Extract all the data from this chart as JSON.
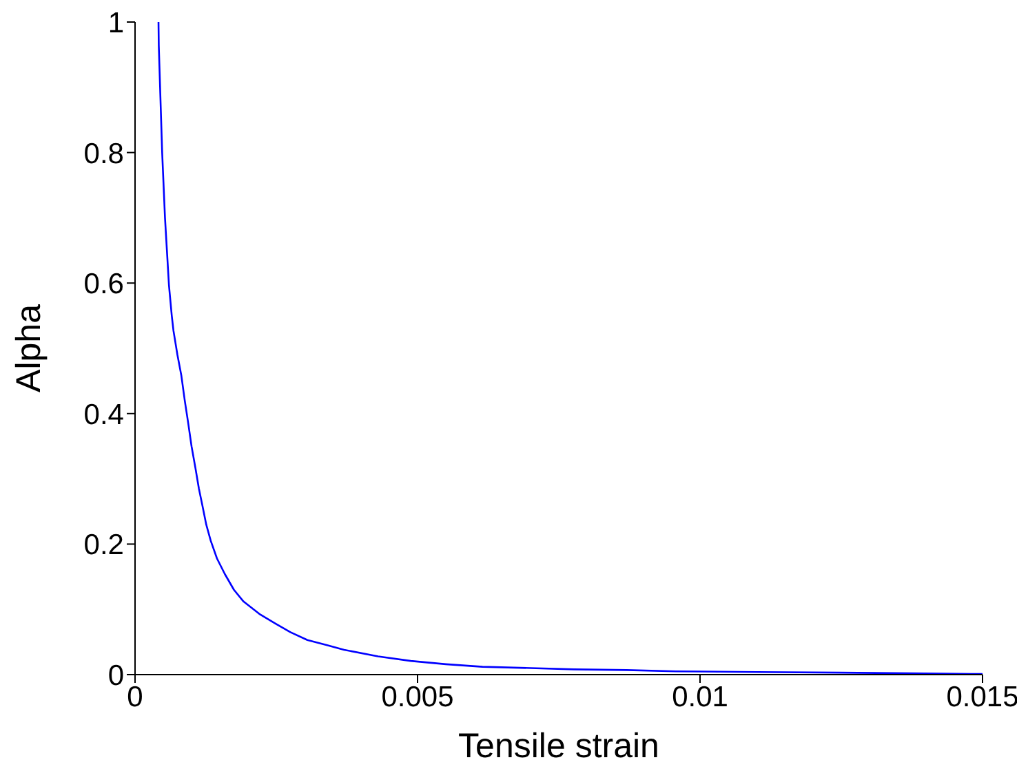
{
  "chart_data": {
    "type": "line",
    "xlabel": "Tensile strain",
    "ylabel": "Alpha",
    "xlim": [
      0,
      0.015
    ],
    "ylim": [
      0,
      1
    ],
    "xticks": [
      0,
      0.005,
      0.01,
      0.015
    ],
    "yticks": [
      0,
      0.2,
      0.4,
      0.6,
      0.8,
      1
    ],
    "grid": false,
    "marker": "none",
    "line_style": "solid",
    "series": [
      {
        "color": "#0000ff",
        "x": [
          0.000415,
          0.00042,
          0.00048,
          0.00053,
          0.0006,
          0.00065,
          0.00068,
          0.00075,
          0.00082,
          0.00088,
          0.00094,
          0.001,
          0.00107,
          0.00113,
          0.00119,
          0.00126,
          0.00134,
          0.00145,
          0.00159,
          0.00175,
          0.00192,
          0.0022,
          0.00249,
          0.00275,
          0.00305,
          0.0034,
          0.0037,
          0.0043,
          0.00488,
          0.0055,
          0.00615,
          0.007,
          0.00777,
          0.0087,
          0.00957,
          0.011,
          0.01246,
          0.0137,
          0.0148,
          0.015
        ],
        "values": [
          1,
          0.964,
          0.8,
          0.7,
          0.597,
          0.55,
          0.527,
          0.49,
          0.458,
          0.42,
          0.386,
          0.35,
          0.316,
          0.285,
          0.26,
          0.23,
          0.205,
          0.178,
          0.154,
          0.13,
          0.112,
          0.093,
          0.078,
          0.065,
          0.053,
          0.045,
          0.038,
          0.028,
          0.021,
          0.016,
          0.012,
          0.01,
          0.008,
          0.007,
          0.005,
          0.004,
          0.003,
          0.002,
          0.001,
          0.001
        ]
      }
    ]
  }
}
